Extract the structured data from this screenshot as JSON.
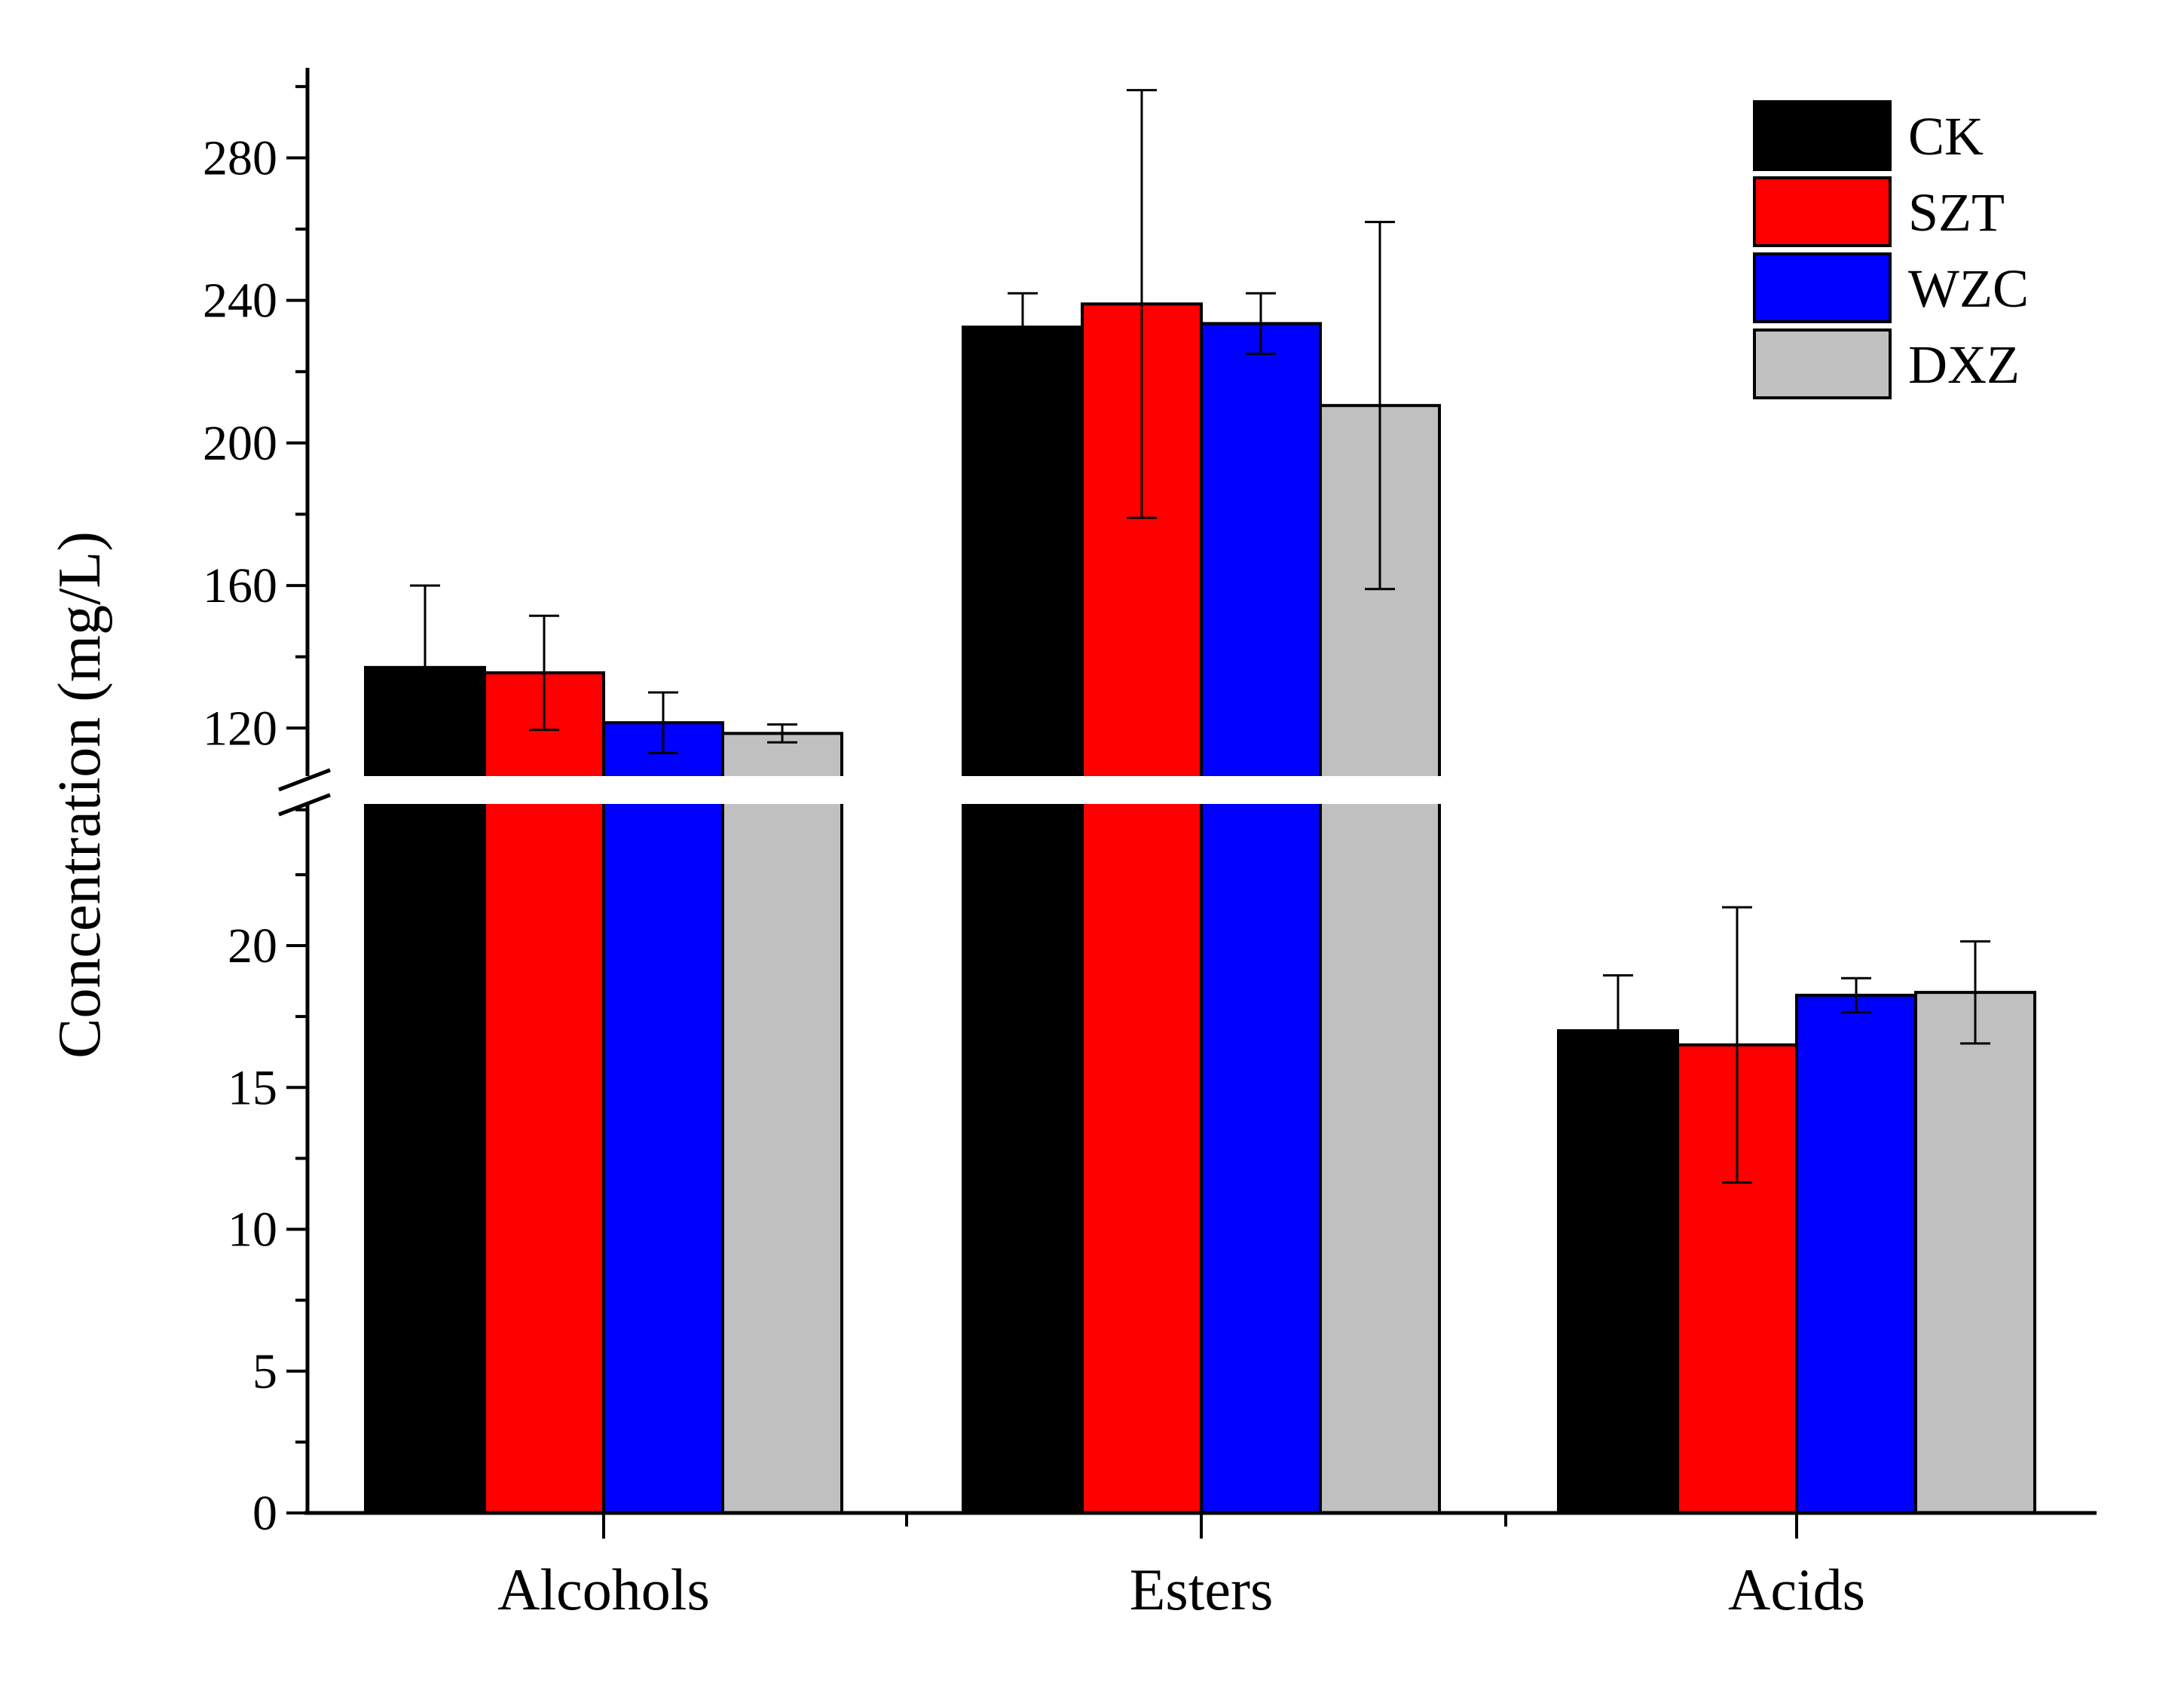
{
  "chart_data": {
    "type": "bar",
    "title": "",
    "xlabel": "",
    "ylabel": "Concentration (mg/L)",
    "categories": [
      "Alcohols",
      "Esters",
      "Acids"
    ],
    "series": [
      {
        "name": "CK",
        "color": "#000000",
        "values": [
          137.0,
          232.5,
          17.0
        ],
        "errors": [
          23.0,
          9.5,
          1.95
        ]
      },
      {
        "name": "SZT",
        "color": "#ff0000",
        "values": [
          135.5,
          239.0,
          16.5
        ],
        "errors": [
          16.0,
          60.0,
          4.85
        ]
      },
      {
        "name": "WZC",
        "color": "#0000ff",
        "values": [
          121.5,
          233.5,
          18.25
        ],
        "errors": [
          8.5,
          8.5,
          0.6
        ]
      },
      {
        "name": "DXZ",
        "color": "#c0c0c0",
        "values": [
          118.5,
          210.5,
          18.35
        ],
        "errors": [
          2.5,
          51.5,
          1.8
        ]
      }
    ],
    "y_axis": {
      "broken": true,
      "lower_range": [
        0,
        25
      ],
      "lower_ticks": [
        "0",
        "5",
        "10",
        "15",
        "20"
      ],
      "upper_range": [
        106,
        300
      ],
      "upper_ticks": [
        "120",
        "160",
        "200",
        "240",
        "280"
      ]
    },
    "legend_position": "top-right",
    "grid": false
  }
}
